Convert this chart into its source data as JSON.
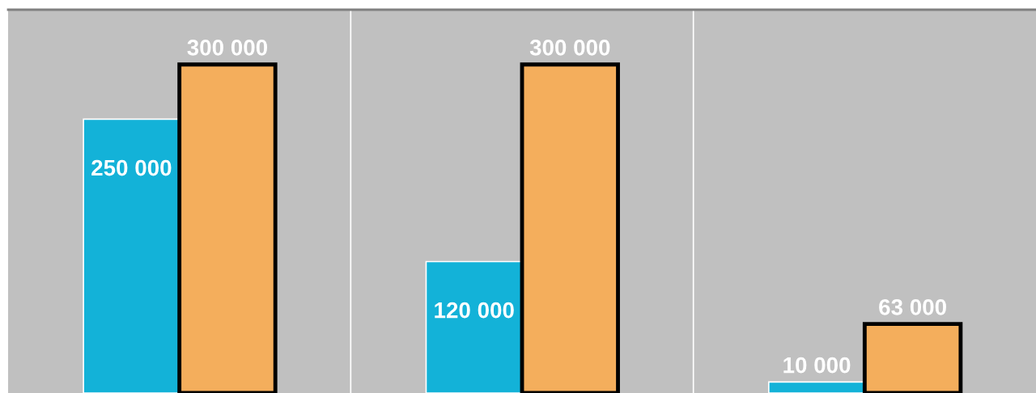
{
  "chart_data": {
    "type": "bar",
    "categories": [
      null,
      null,
      null
    ],
    "series": [
      {
        "color": "#13b2d8",
        "values": [
          250000,
          120000,
          10000
        ]
      },
      {
        "color": "#f4ae5c",
        "values": [
          300000,
          300000,
          63000
        ]
      }
    ],
    "ylim": [
      0,
      350000
    ],
    "grid": "x",
    "data_labels": true,
    "legend": false
  }
}
